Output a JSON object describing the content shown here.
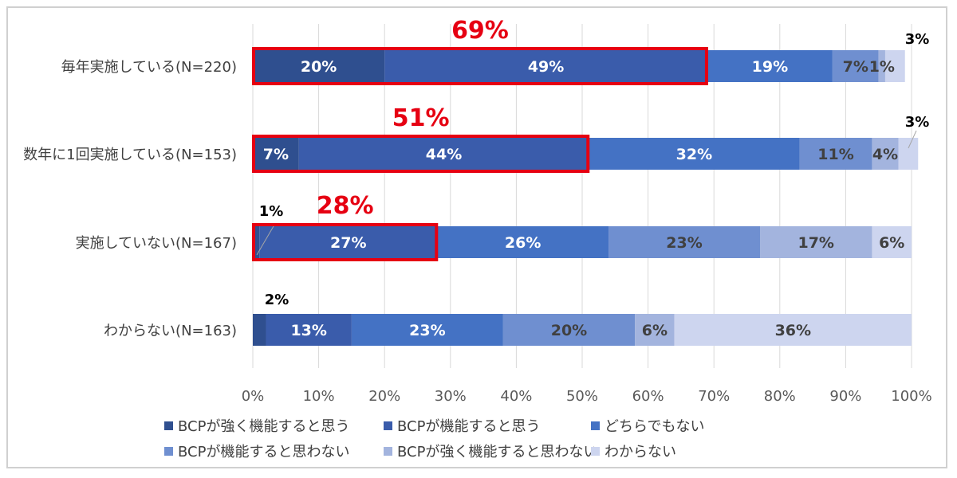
{
  "chart_data": {
    "type": "bar",
    "orientation": "horizontal",
    "stacked": true,
    "categories": [
      "毎年実施している(N=220)",
      "数年に1回実施している(N=153)",
      "実施していない(N=167)",
      "わからない(N=163)"
    ],
    "series": [
      {
        "name": "BCPが強く機能すると思う",
        "color": "#2f4f8f",
        "values": [
          20,
          7,
          1,
          2
        ]
      },
      {
        "name": "BCPが機能すると思う",
        "color": "#3a5cab",
        "values": [
          49,
          44,
          27,
          13
        ]
      },
      {
        "name": "どちらでもない",
        "color": "#4472c4",
        "values": [
          19,
          32,
          26,
          23
        ]
      },
      {
        "name": "BCPが機能すると思わない",
        "color": "#6f8fd0",
        "values": [
          7,
          11,
          23,
          20
        ]
      },
      {
        "name": "BCPが強く機能すると思わない",
        "color": "#a3b4de",
        "values": [
          1,
          4,
          17,
          6
        ]
      },
      {
        "name": "わからない",
        "color": "#cdd5ef",
        "values": [
          3,
          3,
          6,
          36
        ]
      }
    ],
    "data_labels": [
      [
        "20%",
        "49%",
        "19%",
        "7%",
        "1%",
        "3%"
      ],
      [
        "7%",
        "44%",
        "32%",
        "11%",
        "4%",
        "3%"
      ],
      [
        "1%",
        "27%",
        "26%",
        "23%",
        "17%",
        "6%"
      ],
      [
        "2%",
        "13%",
        "23%",
        "20%",
        "6%",
        "36%"
      ]
    ],
    "highlights": [
      {
        "category_index": 0,
        "label": "69%",
        "value": 69
      },
      {
        "category_index": 1,
        "label": "51%",
        "value": 51
      },
      {
        "category_index": 2,
        "label": "28%",
        "value": 28
      }
    ],
    "highlight_color": "#e60012",
    "xlim": [
      0,
      100
    ],
    "x_ticks": [
      "0%",
      "10%",
      "20%",
      "30%",
      "40%",
      "50%",
      "60%",
      "70%",
      "80%",
      "90%",
      "100%"
    ],
    "grid": true,
    "legend_position": "bottom"
  }
}
